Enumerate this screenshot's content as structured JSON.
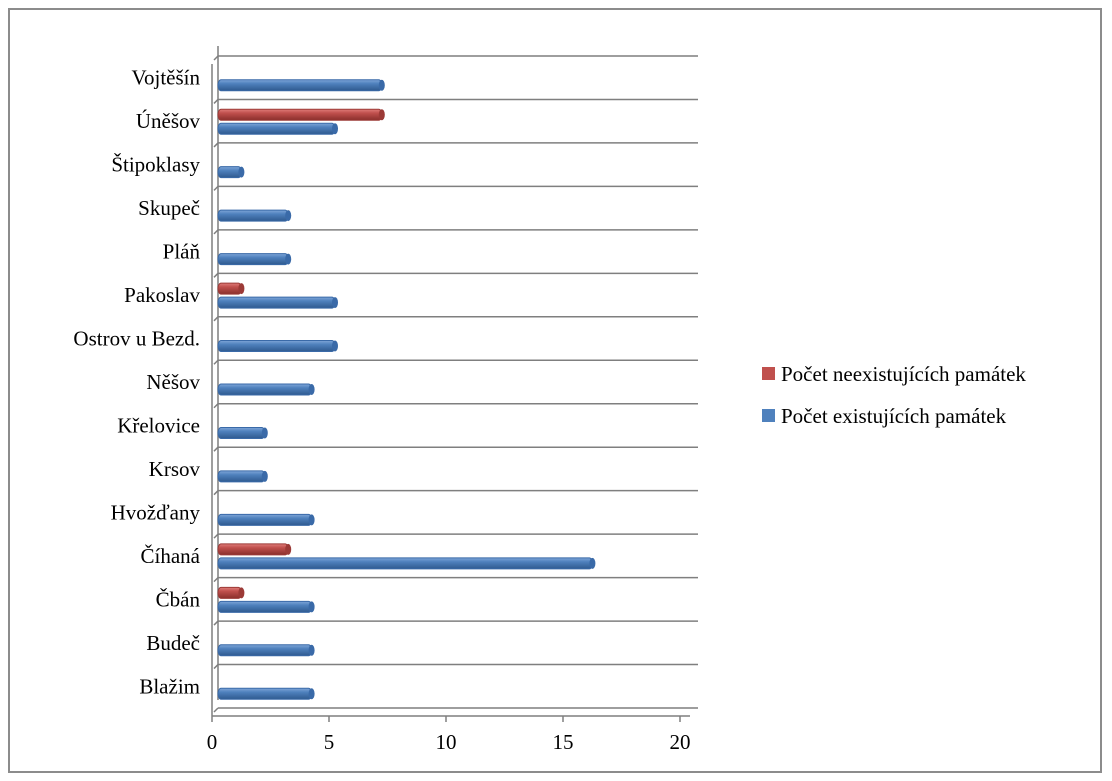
{
  "chart_data": {
    "type": "bar",
    "orientation": "horizontal",
    "style": "3d-cylinder",
    "categories": [
      "Blažim",
      "Budeč",
      "Čbán",
      "Číhaná",
      "Hvožďany",
      "Krsov",
      "Křelovice",
      "Něšov",
      "Ostrov u Bezd.",
      "Pakoslav",
      "Pláň",
      "Skupeč",
      "Štipoklasy",
      "Úněšov",
      "Vojtěšín"
    ],
    "series": [
      {
        "name": "Počet existujících památek",
        "color": "#4f81bd",
        "values": [
          4,
          4,
          4,
          16,
          4,
          2,
          2,
          4,
          5,
          5,
          3,
          3,
          1,
          5,
          7
        ]
      },
      {
        "name": "Počet neexistujících památek",
        "color": "#c0504d",
        "values": [
          0,
          0,
          1,
          3,
          0,
          0,
          0,
          0,
          0,
          1,
          0,
          0,
          0,
          7,
          0
        ]
      }
    ],
    "xlim": [
      0,
      20
    ],
    "xticks": [
      "0",
      "5",
      "10",
      "15",
      "20"
    ],
    "grid": true,
    "legend_position": "right",
    "legend_order": [
      "Počet neexistujících památek",
      "Počet existujících památek"
    ]
  }
}
